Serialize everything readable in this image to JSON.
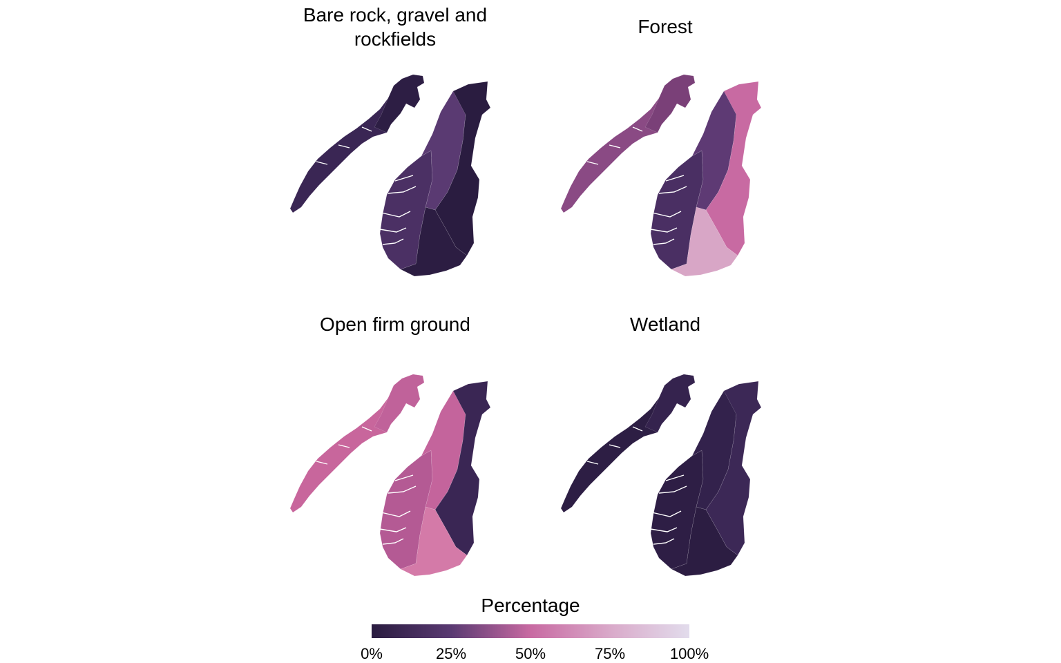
{
  "panels": [
    {
      "title": "Bare rock, gravel and rockfields",
      "lines": [
        "Bare rock, gravel and",
        "rockfields"
      ],
      "colors": {
        "north": "#3a2654",
        "finnmark": "#2d1e44",
        "west": "#4b3064",
        "central": "#5a3a72",
        "east": "#2a1c40",
        "south": "#2c1d42"
      }
    },
    {
      "title": "Forest",
      "lines": [
        "Forest"
      ],
      "colors": {
        "north": "#8a4a84",
        "finnmark": "#7a4078",
        "west": "#4a2f63",
        "central": "#5e3a74",
        "east": "#c86aa2",
        "south": "#d8a6c6"
      }
    },
    {
      "title": "Open firm ground",
      "lines": [
        "Open firm ground"
      ],
      "colors": {
        "north": "#c8669c",
        "finnmark": "#c0629a",
        "west": "#b45a94",
        "central": "#c4649c",
        "east": "#3a2654",
        "south": "#d47aa8"
      }
    },
    {
      "title": "Wetland",
      "lines": [
        "Wetland"
      ],
      "colors": {
        "north": "#2d1e44",
        "finnmark": "#35234e",
        "west": "#2e1e45",
        "central": "#33224c",
        "east": "#3c2856",
        "south": "#2c1d42"
      }
    }
  ],
  "legend": {
    "title": "Percentage",
    "ticks": [
      "0%",
      "25%",
      "50%",
      "75%",
      "100%"
    ],
    "gradient": [
      "#2a1c40",
      "#5a3a72",
      "#c86aa2",
      "#d9a9c9",
      "#e2dcec"
    ]
  }
}
